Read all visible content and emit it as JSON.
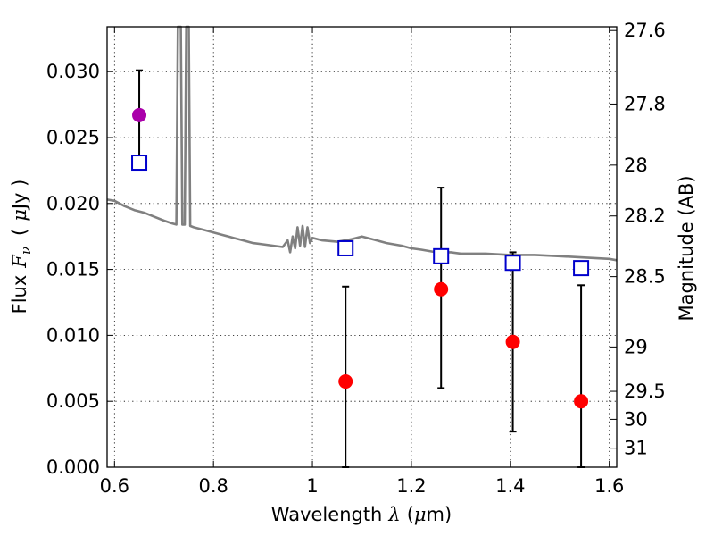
{
  "chart_data": {
    "type": "scatter",
    "xlabel": {
      "pre": "Wavelength",
      "lambda": "λ",
      "open": "(",
      "mu": "μ",
      "unit": "m)"
    },
    "ylabel": {
      "pre": "Flux",
      "F": "F",
      "nu": "ν",
      "open": "(",
      "mu": "μ",
      "unit": "Jy )"
    },
    "ylabel_right": "Magnitude (AB)",
    "xlim": [
      0.585,
      1.615
    ],
    "ylim": [
      0.0,
      0.0334
    ],
    "grid": true,
    "x_ticks": [
      {
        "value": 0.6,
        "label": "0.6"
      },
      {
        "value": 0.8,
        "label": "0.8"
      },
      {
        "value": 1.0,
        "label": "1"
      },
      {
        "value": 1.2,
        "label": "1.2"
      },
      {
        "value": 1.4,
        "label": "1.4"
      },
      {
        "value": 1.6,
        "label": "1.6"
      }
    ],
    "y_ticks": [
      {
        "value": 0.0,
        "label": "0.000"
      },
      {
        "value": 0.005,
        "label": "0.005"
      },
      {
        "value": 0.01,
        "label": "0.010"
      },
      {
        "value": 0.015,
        "label": "0.015"
      },
      {
        "value": 0.02,
        "label": "0.020"
      },
      {
        "value": 0.025,
        "label": "0.025"
      },
      {
        "value": 0.03,
        "label": "0.030"
      }
    ],
    "mag_ticks": [
      {
        "mag": 27.6,
        "label": "27.6"
      },
      {
        "mag": 27.8,
        "label": "27.8"
      },
      {
        "mag": 28.0,
        "label": "28"
      },
      {
        "mag": 28.2,
        "label": "28.2"
      },
      {
        "mag": 28.5,
        "label": "28.5"
      },
      {
        "mag": 29.0,
        "label": "29"
      },
      {
        "mag": 29.5,
        "label": "29.5"
      },
      {
        "mag": 30.0,
        "label": "30"
      },
      {
        "mag": 31.0,
        "label": "31"
      }
    ],
    "model_spectrum": {
      "color": "#808080",
      "points": [
        [
          0.585,
          0.0203
        ],
        [
          0.6,
          0.0202
        ],
        [
          0.62,
          0.0198
        ],
        [
          0.64,
          0.0195
        ],
        [
          0.66,
          0.0193
        ],
        [
          0.68,
          0.019
        ],
        [
          0.7,
          0.0187
        ],
        [
          0.715,
          0.0185
        ],
        [
          0.725,
          0.0184
        ],
        [
          0.728,
          0.0334
        ],
        [
          0.734,
          0.0334
        ],
        [
          0.737,
          0.0184
        ],
        [
          0.742,
          0.0184
        ],
        [
          0.745,
          0.0334
        ],
        [
          0.75,
          0.0334
        ],
        [
          0.753,
          0.0183
        ],
        [
          0.76,
          0.0182
        ],
        [
          0.78,
          0.018
        ],
        [
          0.8,
          0.0178
        ],
        [
          0.82,
          0.0176
        ],
        [
          0.84,
          0.0174
        ],
        [
          0.86,
          0.0172
        ],
        [
          0.88,
          0.017
        ],
        [
          0.9,
          0.0169
        ],
        [
          0.92,
          0.0168
        ],
        [
          0.94,
          0.0167
        ],
        [
          0.95,
          0.0172
        ],
        [
          0.955,
          0.0163
        ],
        [
          0.96,
          0.0175
        ],
        [
          0.965,
          0.0166
        ],
        [
          0.97,
          0.0182
        ],
        [
          0.975,
          0.0168
        ],
        [
          0.98,
          0.0183
        ],
        [
          0.985,
          0.0167
        ],
        [
          0.99,
          0.0182
        ],
        [
          0.995,
          0.017
        ],
        [
          1.0,
          0.0174
        ],
        [
          1.02,
          0.0172
        ],
        [
          1.05,
          0.0171
        ],
        [
          1.08,
          0.0173
        ],
        [
          1.1,
          0.0175
        ],
        [
          1.12,
          0.0173
        ],
        [
          1.15,
          0.017
        ],
        [
          1.18,
          0.0168
        ],
        [
          1.2,
          0.0166
        ],
        [
          1.22,
          0.0165
        ],
        [
          1.25,
          0.0163
        ],
        [
          1.28,
          0.0163
        ],
        [
          1.3,
          0.0162
        ],
        [
          1.35,
          0.0162
        ],
        [
          1.4,
          0.0161
        ],
        [
          1.45,
          0.0161
        ],
        [
          1.5,
          0.016
        ],
        [
          1.55,
          0.0159
        ],
        [
          1.6,
          0.0158
        ],
        [
          1.615,
          0.0157
        ]
      ]
    },
    "series": [
      {
        "marker": "circle",
        "color": "#ff0000",
        "points": [
          {
            "x": 1.067,
            "y": 0.0065,
            "err_low": 0.0065,
            "err_high": 0.0072
          },
          {
            "x": 1.26,
            "y": 0.0135,
            "err_low": 0.0075,
            "err_high": 0.0077
          },
          {
            "x": 1.405,
            "y": 0.0095,
            "err_low": 0.0068,
            "err_high": 0.0068
          },
          {
            "x": 1.543,
            "y": 0.005,
            "err_low": 0.005,
            "err_high": 0.0088
          }
        ]
      },
      {
        "marker": "circle",
        "color": "#aa00aa",
        "points": [
          {
            "x": 0.65,
            "y": 0.0267,
            "err_low": 0.0032,
            "err_high": 0.0034
          }
        ]
      },
      {
        "marker": "open-square",
        "color": "#0000cc",
        "points": [
          {
            "x": 0.65,
            "y": 0.0231
          },
          {
            "x": 1.067,
            "y": 0.0166
          },
          {
            "x": 1.26,
            "y": 0.016
          },
          {
            "x": 1.405,
            "y": 0.0155
          },
          {
            "x": 1.543,
            "y": 0.0151
          }
        ]
      }
    ]
  }
}
